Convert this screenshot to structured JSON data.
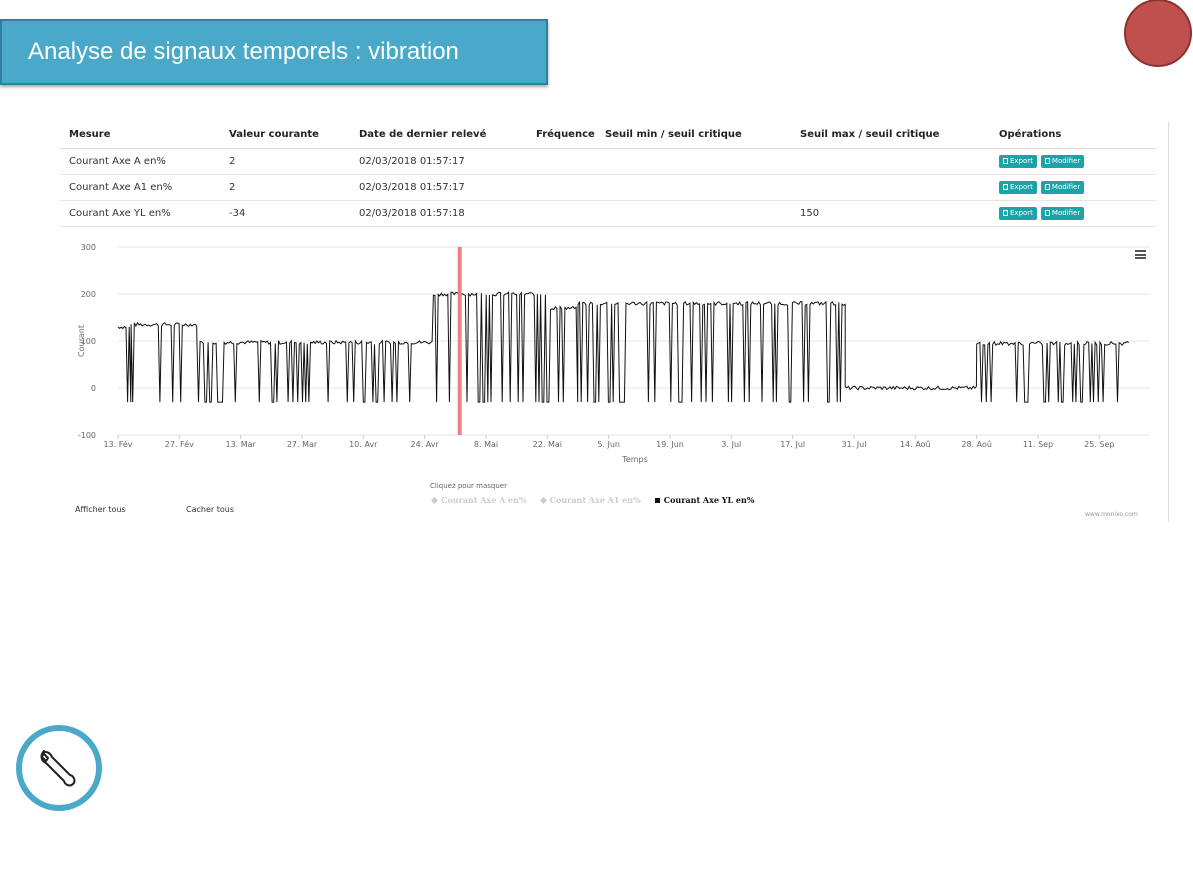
{
  "header": {
    "title": "Analyse de signaux temporels : vibration"
  },
  "table": {
    "columns": [
      "Mesure",
      "Valeur courante",
      "Date de dernier relevé",
      "Fréquence",
      "Seuil min / seuil critique",
      "Seuil max / seuil critique",
      "Opérations"
    ],
    "rows": [
      {
        "mesure": "Courant Axe A en%",
        "valeur": "2",
        "date": "02/03/2018 01:57:17",
        "frequence": "",
        "seuil_min": "",
        "seuil_max": ""
      },
      {
        "mesure": "Courant Axe A1 en%",
        "valeur": "2",
        "date": "02/03/2018 01:57:17",
        "frequence": "",
        "seuil_min": "",
        "seuil_max": ""
      },
      {
        "mesure": "Courant Axe YL en%",
        "valeur": "-34",
        "date": "02/03/2018 01:57:18",
        "frequence": "",
        "seuil_min": "",
        "seuil_max": "150"
      }
    ],
    "export_label": "Export",
    "modifier_label": "Modifier"
  },
  "chart_data": {
    "type": "line",
    "xlabel": "Temps",
    "ylabel": "Courant",
    "ylim": [
      -100,
      300
    ],
    "yticks": [
      "300",
      "200",
      "100",
      "0",
      "-100"
    ],
    "xticks": [
      "13. Fév",
      "27. Fév",
      "13. Mar",
      "27. Mar",
      "10. Avr",
      "24. Avr",
      "8. Mai",
      "22. Mai",
      "5. Jun",
      "19. Jun",
      "3. Jul",
      "17. Jul",
      "31. Jul",
      "14. Aoû",
      "28. Aoû",
      "11. Sep",
      "25. Sep"
    ],
    "marker_line": {
      "date": "2018-05-02",
      "color": "#f08080"
    },
    "series": [
      {
        "name": "Courant Axe A en%",
        "visible": false,
        "values": []
      },
      {
        "name": "Courant Axe A1 en%",
        "visible": false,
        "values": []
      },
      {
        "name": "Courant Axe YL en%",
        "visible": true,
        "segments": [
          {
            "from": "2018-02-13",
            "to": "2018-02-16",
            "level": 130
          },
          {
            "from": "2018-02-16",
            "to": "2018-03-03",
            "level": 135
          },
          {
            "from": "2018-03-03",
            "to": "2018-04-26",
            "level": 97
          },
          {
            "from": "2018-04-26",
            "to": "2018-05-22",
            "level": 200
          },
          {
            "from": "2018-05-22",
            "to": "2018-05-29",
            "level": 170
          },
          {
            "from": "2018-05-29",
            "to": "2018-07-29",
            "level": 180
          },
          {
            "from": "2018-07-29",
            "to": "2018-08-28",
            "level": 0
          },
          {
            "from": "2018-08-28",
            "to": "2018-10-02",
            "level": 95
          }
        ],
        "dropouts_to": -30
      }
    ],
    "legend_hint": "Cliquez pour masquer",
    "show_all": "Afficher tous",
    "hide_all": "Cacher tous",
    "credit": "www.monixo.com",
    "colors": {
      "line": "#111111",
      "grid": "#e6e6e6",
      "banner": "#4aa8c8",
      "button": "#1ba3a8"
    }
  }
}
